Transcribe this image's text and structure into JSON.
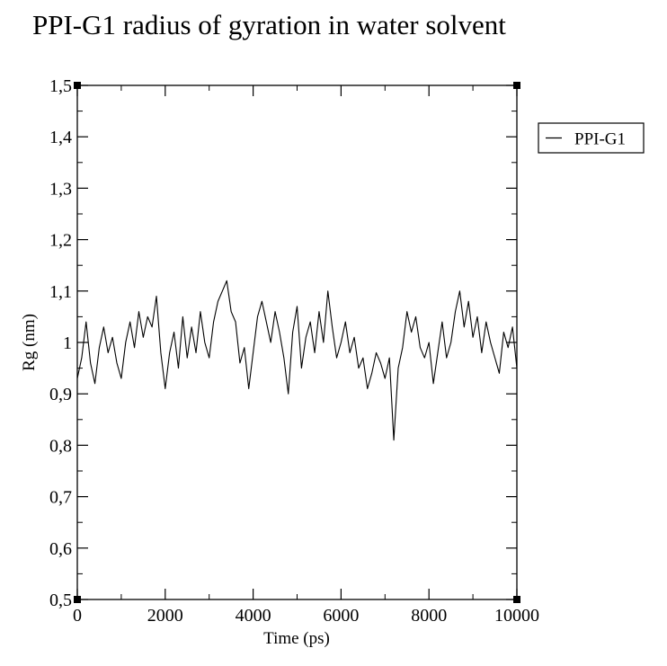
{
  "chart_data": {
    "type": "line",
    "title": "PPI-G1 radius of gyration in water solvent",
    "xlabel": "Time (ps)",
    "ylabel": "Rg (nm)",
    "xlim": [
      0,
      10000
    ],
    "ylim": [
      0.5,
      1.5
    ],
    "grid": false,
    "legend_position": "right",
    "x_ticks": [
      0,
      2000,
      4000,
      6000,
      8000,
      10000
    ],
    "x_tick_labels": [
      "0",
      "2000",
      "4000",
      "6000",
      "8000",
      "10000"
    ],
    "y_ticks": [
      0.5,
      0.6,
      0.7,
      0.8,
      0.9,
      1.0,
      1.1,
      1.2,
      1.3,
      1.4,
      1.5
    ],
    "y_tick_labels": [
      "0,5",
      "0,6",
      "0,7",
      "0,8",
      "0,9",
      "1",
      "1,1",
      "1,2",
      "1,3",
      "1,4",
      "1,5"
    ],
    "series": [
      {
        "name": "PPI-G1",
        "color": "#000000",
        "x": [
          0,
          100,
          200,
          300,
          400,
          500,
          600,
          700,
          800,
          900,
          1000,
          1100,
          1200,
          1300,
          1400,
          1500,
          1600,
          1700,
          1800,
          1900,
          2000,
          2100,
          2200,
          2300,
          2400,
          2500,
          2600,
          2700,
          2800,
          2900,
          3000,
          3100,
          3200,
          3300,
          3400,
          3500,
          3600,
          3700,
          3800,
          3900,
          4000,
          4100,
          4200,
          4300,
          4400,
          4500,
          4600,
          4700,
          4800,
          4900,
          5000,
          5100,
          5200,
          5300,
          5400,
          5500,
          5600,
          5700,
          5800,
          5900,
          6000,
          6100,
          6200,
          6300,
          6400,
          6500,
          6600,
          6700,
          6800,
          6900,
          7000,
          7100,
          7200,
          7300,
          7400,
          7500,
          7600,
          7700,
          7800,
          7900,
          8000,
          8100,
          8200,
          8300,
          8400,
          8500,
          8600,
          8700,
          8800,
          8900,
          9000,
          9100,
          9200,
          9300,
          9400,
          9500,
          9600,
          9700,
          9800,
          9900,
          10000
        ],
        "y": [
          0.93,
          0.97,
          1.04,
          0.96,
          0.92,
          0.99,
          1.03,
          0.98,
          1.01,
          0.96,
          0.93,
          1.0,
          1.04,
          0.99,
          1.06,
          1.01,
          1.05,
          1.03,
          1.09,
          0.98,
          0.91,
          0.98,
          1.02,
          0.95,
          1.05,
          0.97,
          1.03,
          0.98,
          1.06,
          1.0,
          0.97,
          1.04,
          1.08,
          1.1,
          1.12,
          1.06,
          1.04,
          0.96,
          0.99,
          0.91,
          0.98,
          1.05,
          1.08,
          1.04,
          1.0,
          1.06,
          1.02,
          0.97,
          0.9,
          1.02,
          1.07,
          0.95,
          1.01,
          1.04,
          0.98,
          1.06,
          1.0,
          1.1,
          1.03,
          0.97,
          1.0,
          1.04,
          0.98,
          1.01,
          0.95,
          0.97,
          0.91,
          0.94,
          0.98,
          0.96,
          0.93,
          0.97,
          0.81,
          0.95,
          0.99,
          1.06,
          1.02,
          1.05,
          0.99,
          0.97,
          1.0,
          0.92,
          0.98,
          1.04,
          0.97,
          1.0,
          1.06,
          1.1,
          1.03,
          1.08,
          1.01,
          1.05,
          0.98,
          1.04,
          1.0,
          0.97,
          0.94,
          1.02,
          0.99,
          1.03,
          0.95
        ]
      }
    ]
  }
}
